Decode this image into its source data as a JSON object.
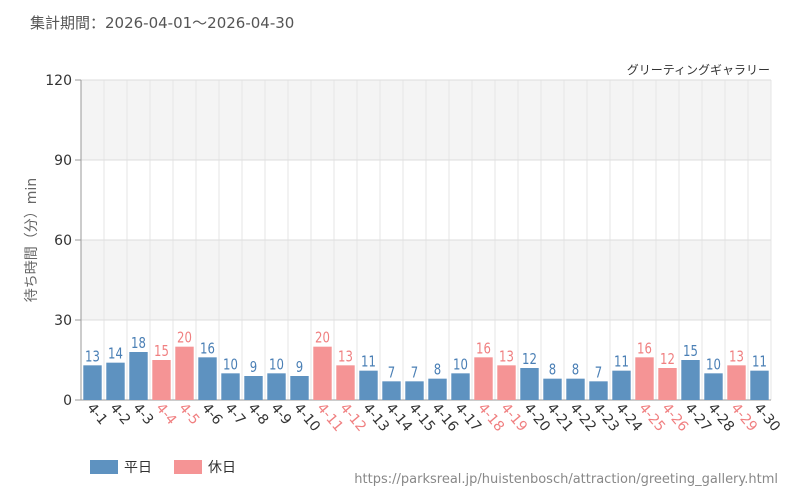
{
  "period_label": "集計期間：2026-04-01～2026-04-30",
  "source_url": "https://parksreal.jp/huistenbosch/attraction/greeting_gallery.html",
  "colors": {
    "weekday": "#5e92c0",
    "holiday": "#f59495",
    "weekday_text": "#4a7fb5",
    "holiday_text": "#f07f80"
  },
  "legend": [
    {
      "label": "平日",
      "color": "#5e92c0"
    },
    {
      "label": "休日",
      "color": "#f59495"
    }
  ],
  "chart_data": {
    "type": "bar",
    "title": "グリーティングギャラリー",
    "ylabel": "待ち時間（分）min",
    "xlabel": "",
    "ylim": [
      0,
      120
    ],
    "yticks": [
      0,
      30,
      60,
      90,
      120
    ],
    "grid": true,
    "legend_position": "bottom-left",
    "categories": [
      "4-1",
      "4-2",
      "4-3",
      "4-4",
      "4-5",
      "4-6",
      "4-7",
      "4-8",
      "4-9",
      "4-10",
      "4-11",
      "4-12",
      "4-13",
      "4-14",
      "4-15",
      "4-16",
      "4-17",
      "4-18",
      "4-19",
      "4-20",
      "4-21",
      "4-22",
      "4-23",
      "4-24",
      "4-25",
      "4-26",
      "4-27",
      "4-28",
      "4-29",
      "4-30"
    ],
    "values": [
      13,
      14,
      18,
      15,
      20,
      16,
      10,
      9,
      10,
      9,
      20,
      13,
      11,
      7,
      7,
      8,
      10,
      16,
      13,
      12,
      8,
      8,
      7,
      11,
      16,
      12,
      15,
      10,
      13,
      11
    ],
    "day_type": [
      "平日",
      "平日",
      "平日",
      "休日",
      "休日",
      "平日",
      "平日",
      "平日",
      "平日",
      "平日",
      "休日",
      "休日",
      "平日",
      "平日",
      "平日",
      "平日",
      "平日",
      "休日",
      "休日",
      "平日",
      "平日",
      "平日",
      "平日",
      "平日",
      "休日",
      "休日",
      "平日",
      "平日",
      "休日",
      "平日"
    ]
  }
}
